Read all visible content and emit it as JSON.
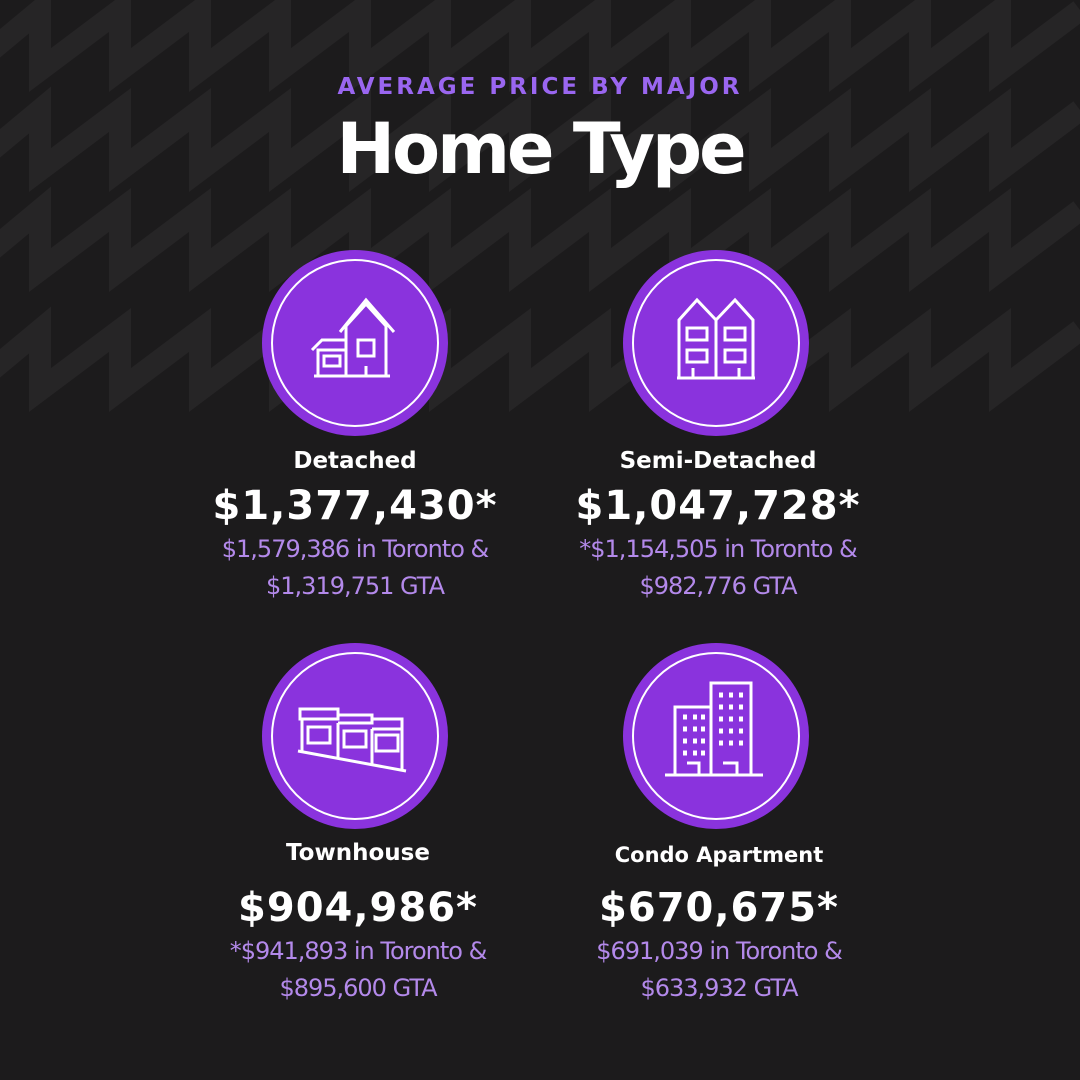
{
  "header": {
    "subtitle": "AVERAGE PRICE BY MAJOR",
    "title": "Home Type"
  },
  "items": [
    {
      "label": "Detached",
      "price": "$1,377,430*",
      "details": [
        "$1,579,386 in Toronto  &",
        "$1,319,751 GTA"
      ]
    },
    {
      "label": "Semi-Detached",
      "price": "$1,047,728*",
      "details": [
        "*$1,154,505  in Toronto &",
        "$982,776 GTA"
      ]
    },
    {
      "label": "Townhouse",
      "price": "$904,986*",
      "details": [
        "*$941,893 in Toronto &",
        "$895,600 GTA"
      ]
    },
    {
      "label": "Condo Apartment",
      "price": "$670,675*",
      "details": [
        "$691,039 in Toronto &",
        "$633,932  GTA"
      ]
    }
  ]
}
